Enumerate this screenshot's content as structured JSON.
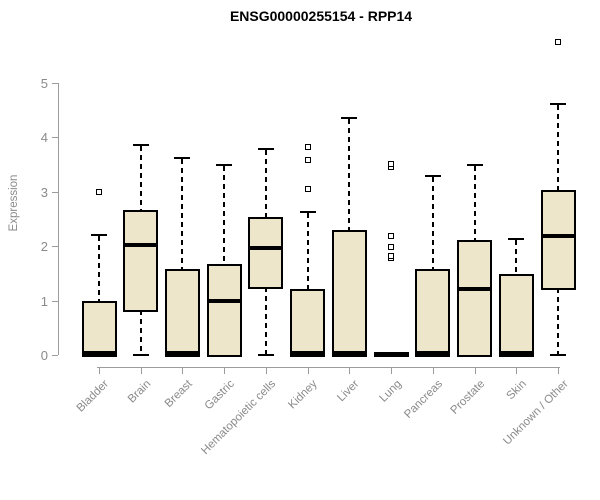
{
  "window": {
    "background": "#ffffff"
  },
  "chart_data": {
    "type": "boxplot",
    "title": "ENSG00000255154 - RPP14",
    "xlabel": "",
    "ylabel": "Expression",
    "ylim": [
      0,
      5
    ],
    "yticks": [
      0,
      1,
      2,
      3,
      4,
      5
    ],
    "grid": false,
    "legend": null,
    "categories": [
      "Bladder",
      "Brain",
      "Breast",
      "Gastric",
      "Hematopoietic cells",
      "Kidney",
      "Liver",
      "Lung",
      "Pancreas",
      "Prostate",
      "Skin",
      "Unknown / Other"
    ],
    "boxes": [
      {
        "category": "Bladder",
        "whisker_low": 0,
        "q1": 0,
        "median": 0.03,
        "q3": 0.95,
        "whisker_high": 2.2,
        "outliers": [
          3.0
        ]
      },
      {
        "category": "Brain",
        "whisker_low": 0,
        "q1": 0.83,
        "median": 2.02,
        "q3": 2.63,
        "whisker_high": 3.85,
        "outliers": []
      },
      {
        "category": "Breast",
        "whisker_low": 0,
        "q1": 0,
        "median": 0.03,
        "q3": 1.55,
        "whisker_high": 3.62,
        "outliers": []
      },
      {
        "category": "Gastric",
        "whisker_low": 0,
        "q1": 0,
        "median": 1.0,
        "q3": 1.64,
        "whisker_high": 3.48,
        "outliers": []
      },
      {
        "category": "Hematopoietic cells",
        "whisker_low": 0,
        "q1": 1.25,
        "median": 1.96,
        "q3": 2.5,
        "whisker_high": 3.78,
        "outliers": []
      },
      {
        "category": "Kidney",
        "whisker_low": 0,
        "q1": 0,
        "median": 0.03,
        "q3": 1.18,
        "whisker_high": 2.62,
        "outliers": [
          3.05,
          3.58,
          3.82
        ]
      },
      {
        "category": "Liver",
        "whisker_low": 0,
        "q1": 0,
        "median": 0.03,
        "q3": 2.25,
        "whisker_high": 4.35,
        "outliers": []
      },
      {
        "category": "Lung",
        "whisker_low": 0,
        "q1": 0,
        "median": 0.01,
        "q3": 0.02,
        "whisker_high": 0.02,
        "outliers": [
          1.78,
          1.82,
          1.98,
          2.18,
          3.45,
          3.5
        ]
      },
      {
        "category": "Pancreas",
        "whisker_low": 0,
        "q1": 0,
        "median": 0.03,
        "q3": 1.54,
        "whisker_high": 3.28,
        "outliers": []
      },
      {
        "category": "Prostate",
        "whisker_low": 0,
        "q1": 0,
        "median": 1.22,
        "q3": 2.07,
        "whisker_high": 3.48,
        "outliers": []
      },
      {
        "category": "Skin",
        "whisker_low": 0,
        "q1": 0,
        "median": 0.03,
        "q3": 1.45,
        "whisker_high": 2.13,
        "outliers": []
      },
      {
        "category": "Unknown / Other",
        "whisker_low": 0,
        "q1": 1.23,
        "median": 2.18,
        "q3": 3.0,
        "whisker_high": 4.6,
        "outliers": [
          5.75
        ]
      }
    ],
    "colors": {
      "box_fill": "#EDE6CA",
      "box_border": "#000000",
      "median": "#000000",
      "whisker": "#000000",
      "axis": "#9c9c9c",
      "tick_text": "#8a8a8a",
      "title_text": "#000000"
    }
  }
}
